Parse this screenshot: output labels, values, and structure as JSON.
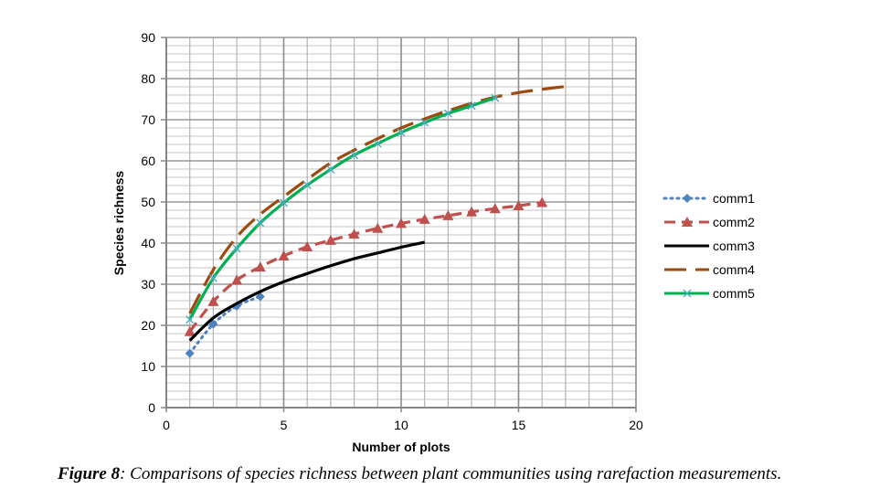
{
  "chart_data": {
    "type": "line",
    "title": "",
    "xlabel": "Number of plots",
    "ylabel": "Species richness",
    "xlim": [
      0,
      20
    ],
    "ylim": [
      0,
      90
    ],
    "x_ticks": [
      0,
      5,
      10,
      15,
      20
    ],
    "y_ticks": [
      0,
      10,
      20,
      30,
      40,
      50,
      60,
      70,
      80,
      90
    ],
    "grid": true,
    "legend_position": "right",
    "series": [
      {
        "name": "comm1",
        "color": "#4f81bd",
        "style": "dotted",
        "marker": "diamond",
        "x": [
          1,
          2,
          3,
          4
        ],
        "y": [
          13.2,
          20.3,
          24.7,
          27.0
        ]
      },
      {
        "name": "comm2",
        "color": "#c0504d",
        "style": "dashed",
        "marker": "triangle",
        "x": [
          1,
          2,
          3,
          4,
          5,
          6,
          7,
          8,
          9,
          10,
          11,
          12,
          13,
          14,
          15,
          16
        ],
        "y": [
          18.5,
          25.8,
          31.0,
          34.2,
          36.9,
          39.1,
          40.7,
          42.2,
          43.6,
          44.8,
          45.8,
          46.7,
          47.6,
          48.4,
          49.1,
          49.9
        ]
      },
      {
        "name": "comm3",
        "color": "#000000",
        "style": "solid",
        "marker": "none",
        "x": [
          1,
          2,
          3,
          4,
          5,
          6,
          7,
          8,
          9,
          10,
          11
        ],
        "y": [
          16.3,
          21.8,
          25.3,
          28.2,
          30.6,
          32.6,
          34.5,
          36.2,
          37.6,
          39.0,
          40.2
        ]
      },
      {
        "name": "comm4",
        "color": "#9c4a0f",
        "style": "longdash",
        "marker": "none",
        "x": [
          1,
          2,
          3,
          4,
          5,
          6,
          7,
          8,
          9,
          10,
          11,
          12,
          13,
          14,
          15,
          16,
          17
        ],
        "y": [
          22.9,
          33.5,
          41.5,
          47.0,
          51.3,
          55.5,
          59.5,
          62.6,
          65.4,
          68.0,
          70.2,
          72.2,
          74.0,
          75.5,
          76.6,
          77.4,
          78.1
        ]
      },
      {
        "name": "comm5",
        "color": "#00b050",
        "marker_color": "#4bacc6",
        "style": "solid",
        "marker": "x",
        "x": [
          1,
          2,
          3,
          4,
          5,
          6,
          7,
          8,
          9,
          10,
          11,
          12,
          13,
          14
        ],
        "y": [
          21.4,
          31.5,
          38.7,
          44.9,
          49.8,
          54.1,
          57.9,
          61.4,
          64.2,
          66.9,
          69.3,
          71.5,
          73.4,
          75.3
        ]
      }
    ]
  },
  "caption": {
    "label": "Figure 8",
    "text": ": Comparisons of species richness between plant communities using rarefaction measurements."
  }
}
